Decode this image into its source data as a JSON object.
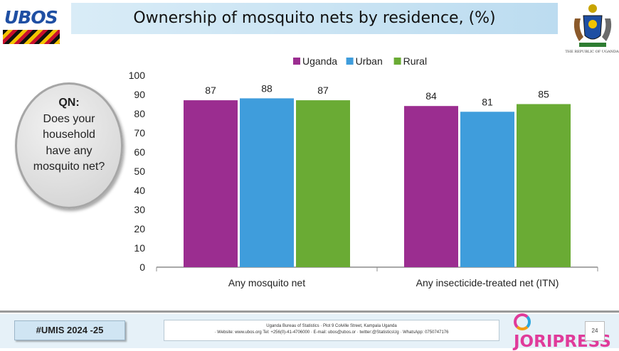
{
  "header": {
    "title": "Ownership of mosquito nets by residence, (%)",
    "logo_text": "UBOS",
    "crest_caption": "THE REPUBLIC OF UGANDA"
  },
  "question": {
    "label": "QN:",
    "text": "Does your household have any mosquito net?"
  },
  "chart_data": {
    "type": "bar",
    "title": "Ownership of mosquito nets by residence, (%)",
    "categories": [
      "Any mosquito net",
      "Any insecticide-treated net (ITN)"
    ],
    "series": [
      {
        "name": "Uganda",
        "color": "#9b2d90",
        "values": [
          87,
          84
        ]
      },
      {
        "name": "Urban",
        "color": "#3f9ddc",
        "values": [
          88,
          81
        ]
      },
      {
        "name": "Rural",
        "color": "#6aab34",
        "values": [
          87,
          85
        ]
      }
    ],
    "yticks": [
      0,
      10,
      20,
      30,
      40,
      50,
      60,
      70,
      80,
      90,
      100
    ],
    "ylim": [
      0,
      100
    ],
    "xlabel": "",
    "ylabel": "",
    "legend": "top-center",
    "grid": false
  },
  "footer": {
    "hashtag": "#UMIS 2024 -25",
    "address": "Uganda Bureau of Statistics · Plot 9 Colville Street, Kampala Uganda",
    "contacts": "· Website: www.ubos.org Tel: +256(0)-41-4706000 · E-mail: ubos@ubos.or · twitter:@StatisticsUg · WhatsApp: 0750747176",
    "watermark": "JORIPRESS",
    "page_number": "24"
  }
}
